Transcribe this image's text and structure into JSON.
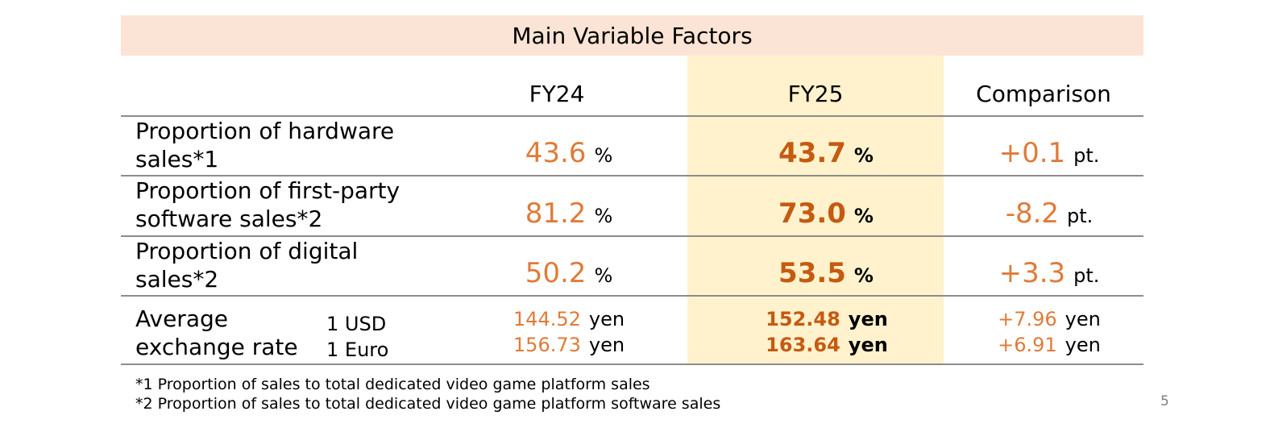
{
  "title": "Main Variable Factors",
  "columns": {
    "fy24": "FY24",
    "fy25": "FY25",
    "comparison": "Comparison"
  },
  "rows": [
    {
      "label_line1": "Proportion of hardware",
      "label_line2": "sales*1",
      "fy24": "43.6",
      "fy24_unit": "%",
      "fy25": "43.7",
      "fy25_unit": "%",
      "cmp": "+0.1",
      "cmp_unit": "pt."
    },
    {
      "label_line1": "Proportion of first-party",
      "label_line2": "software sales*2",
      "fy24": "81.2",
      "fy24_unit": "%",
      "fy25": "73.0",
      "fy25_unit": "%",
      "cmp": "-8.2",
      "cmp_unit": "pt."
    },
    {
      "label_line1": "Proportion of digital",
      "label_line2": "sales*2",
      "fy24": "50.2",
      "fy24_unit": "%",
      "fy25": "53.5",
      "fy25_unit": "%",
      "cmp": "+3.3",
      "cmp_unit": "pt."
    }
  ],
  "exchange": {
    "label_line1": "Average",
    "label_line2": "exchange rate",
    "rates": [
      {
        "currency": "1 USD",
        "fy24": "144.52",
        "fy25": "152.48",
        "cmp": "+7.96",
        "unit": "yen"
      },
      {
        "currency": "1 Euro",
        "fy24": "156.73",
        "fy25": "163.64",
        "cmp": "+6.91",
        "unit": "yen"
      }
    ]
  },
  "footnotes": [
    "*1 Proportion of sales to total dedicated video game platform sales",
    "*2 Proportion of sales to total dedicated video game platform software sales"
  ],
  "page_number": "5",
  "colors": {
    "title_bg": "#fbe4d5",
    "fy25_bg": "#fff2cc",
    "value": "#e07b39",
    "value_bold": "#c55a11",
    "rule": "#8c8c8c"
  }
}
